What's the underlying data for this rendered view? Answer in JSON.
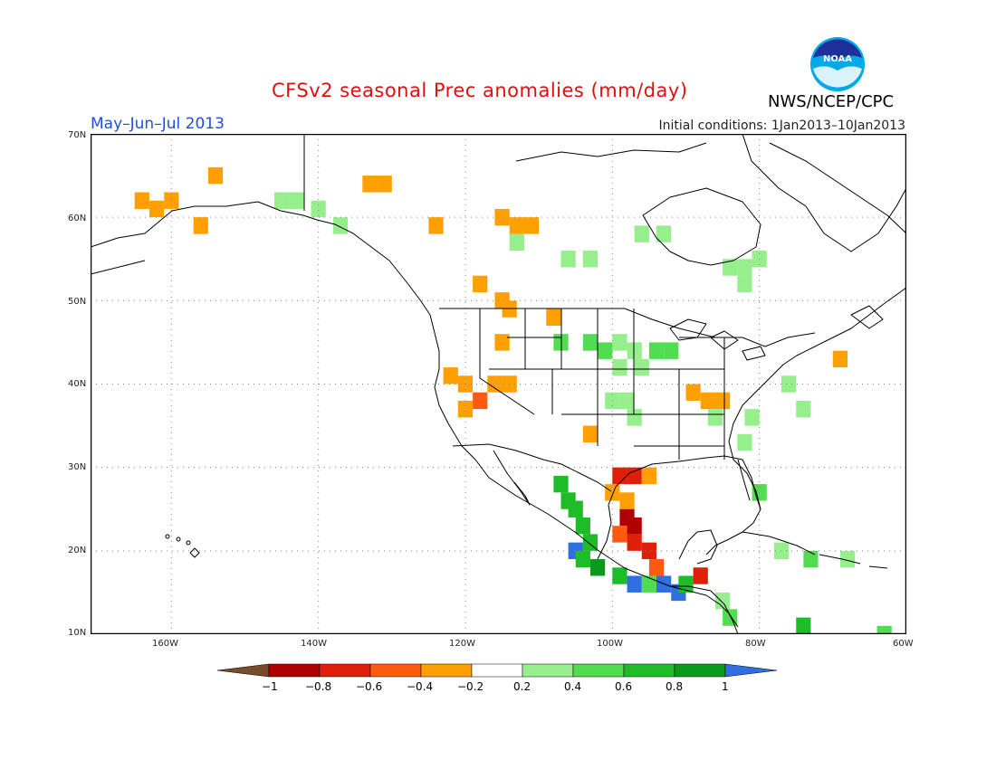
{
  "header": {
    "title": "CFSv2 seasonal Prec anomalies (mm/day)",
    "period": "May–Jun–Jul 2013",
    "initial_conditions": "Initial conditions: 1Jan2013–10Jan2013",
    "agency": "NWS/NCEP/CPC",
    "logo_text": "NOAA"
  },
  "axes": {
    "lat_labels": [
      "70N",
      "60N",
      "50N",
      "40N",
      "30N",
      "20N",
      "10N"
    ],
    "lon_labels": [
      "160W",
      "140W",
      "120W",
      "100W",
      "80W",
      "60W"
    ],
    "lat_range": [
      10,
      70
    ],
    "lon_range": [
      -171,
      -60
    ]
  },
  "colorbar": {
    "ticks": [
      "−1",
      "−0.8",
      "−0.6",
      "−0.4",
      "−0.2",
      "0.2",
      "0.4",
      "0.6",
      "0.8",
      "1"
    ],
    "colors": {
      "lt_m1": "#7a4a2a",
      "m1_m08": "#b00000",
      "m08_m06": "#e01f0a",
      "m06_m04": "#ff5a10",
      "m04_m02": "#ffa000",
      "m02_02": "#ffffff",
      "p02_04": "#96ee8c",
      "p04_06": "#52dc52",
      "p06_08": "#1ebc28",
      "p08_1": "#0c9a1c",
      "gt_1": "#2f6fe0"
    }
  },
  "anomaly_cells": [
    {
      "lon": -164,
      "lat": 62,
      "cls": "m04_m02"
    },
    {
      "lon": -162,
      "lat": 61,
      "cls": "m04_m02"
    },
    {
      "lon": -160,
      "lat": 62,
      "cls": "m04_m02"
    },
    {
      "lon": -156,
      "lat": 59,
      "cls": "m04_m02"
    },
    {
      "lon": -154,
      "lat": 65,
      "cls": "m04_m02"
    },
    {
      "lon": -133,
      "lat": 64,
      "cls": "m04_m02"
    },
    {
      "lon": -131,
      "lat": 64,
      "cls": "m04_m02"
    },
    {
      "lon": -145,
      "lat": 62,
      "cls": "p02_04"
    },
    {
      "lon": -143,
      "lat": 62,
      "cls": "p02_04"
    },
    {
      "lon": -140,
      "lat": 61,
      "cls": "p02_04"
    },
    {
      "lon": -137,
      "lat": 59,
      "cls": "p02_04"
    },
    {
      "lon": -124,
      "lat": 59,
      "cls": "m04_m02"
    },
    {
      "lon": -115,
      "lat": 60,
      "cls": "m04_m02"
    },
    {
      "lon": -113,
      "lat": 59,
      "cls": "m04_m02"
    },
    {
      "lon": -111,
      "lat": 59,
      "cls": "m04_m02"
    },
    {
      "lon": -113,
      "lat": 57,
      "cls": "p02_04"
    },
    {
      "lon": -106,
      "lat": 55,
      "cls": "p02_04"
    },
    {
      "lon": -103,
      "lat": 55,
      "cls": "p02_04"
    },
    {
      "lon": -96,
      "lat": 58,
      "cls": "p02_04"
    },
    {
      "lon": -93,
      "lat": 58,
      "cls": "p02_04"
    },
    {
      "lon": -84,
      "lat": 54,
      "cls": "p02_04"
    },
    {
      "lon": -82,
      "lat": 54,
      "cls": "p02_04"
    },
    {
      "lon": -80,
      "lat": 55,
      "cls": "p02_04"
    },
    {
      "lon": -82,
      "lat": 52,
      "cls": "p02_04"
    },
    {
      "lon": -118,
      "lat": 52,
      "cls": "m04_m02"
    },
    {
      "lon": -115,
      "lat": 50,
      "cls": "m04_m02"
    },
    {
      "lon": -114,
      "lat": 49,
      "cls": "m04_m02"
    },
    {
      "lon": -108,
      "lat": 48,
      "cls": "m04_m02"
    },
    {
      "lon": -115,
      "lat": 45,
      "cls": "m04_m02"
    },
    {
      "lon": -107,
      "lat": 45,
      "cls": "p04_06"
    },
    {
      "lon": -103,
      "lat": 45,
      "cls": "p04_06"
    },
    {
      "lon": -101,
      "lat": 44,
      "cls": "p04_06"
    },
    {
      "lon": -99,
      "lat": 45,
      "cls": "p02_04"
    },
    {
      "lon": -97,
      "lat": 44,
      "cls": "p02_04"
    },
    {
      "lon": -94,
      "lat": 44,
      "cls": "p04_06"
    },
    {
      "lon": -92,
      "lat": 44,
      "cls": "p04_06"
    },
    {
      "lon": -99,
      "lat": 42,
      "cls": "p02_04"
    },
    {
      "lon": -96,
      "lat": 42,
      "cls": "p02_04"
    },
    {
      "lon": -122,
      "lat": 41,
      "cls": "m04_m02"
    },
    {
      "lon": -120,
      "lat": 40,
      "cls": "m04_m02"
    },
    {
      "lon": -118,
      "lat": 38,
      "cls": "m06_m04"
    },
    {
      "lon": -116,
      "lat": 40,
      "cls": "m04_m02"
    },
    {
      "lon": -114,
      "lat": 40,
      "cls": "m04_m02"
    },
    {
      "lon": -120,
      "lat": 37,
      "cls": "m04_m02"
    },
    {
      "lon": -100,
      "lat": 38,
      "cls": "p02_04"
    },
    {
      "lon": -98,
      "lat": 38,
      "cls": "p02_04"
    },
    {
      "lon": -97,
      "lat": 36,
      "cls": "p02_04"
    },
    {
      "lon": -103,
      "lat": 34,
      "cls": "m04_m02"
    },
    {
      "lon": -89,
      "lat": 39,
      "cls": "m04_m02"
    },
    {
      "lon": -87,
      "lat": 38,
      "cls": "m04_m02"
    },
    {
      "lon": -85,
      "lat": 38,
      "cls": "m04_m02"
    },
    {
      "lon": -86,
      "lat": 36,
      "cls": "p02_04"
    },
    {
      "lon": -81,
      "lat": 36,
      "cls": "p02_04"
    },
    {
      "lon": -76,
      "lat": 40,
      "cls": "p02_04"
    },
    {
      "lon": -74,
      "lat": 37,
      "cls": "p02_04"
    },
    {
      "lon": -82,
      "lat": 33,
      "cls": "p02_04"
    },
    {
      "lon": -80,
      "lat": 27,
      "cls": "p04_06"
    },
    {
      "lon": -99,
      "lat": 29,
      "cls": "m08_m06"
    },
    {
      "lon": -97,
      "lat": 29,
      "cls": "m08_m06"
    },
    {
      "lon": -95,
      "lat": 29,
      "cls": "m04_m02"
    },
    {
      "lon": -100,
      "lat": 27,
      "cls": "m04_m02"
    },
    {
      "lon": -98,
      "lat": 26,
      "cls": "m04_m02"
    },
    {
      "lon": -98,
      "lat": 24,
      "cls": "m1_m08"
    },
    {
      "lon": -97,
      "lat": 23,
      "cls": "m1_m08"
    },
    {
      "lon": -99,
      "lat": 22,
      "cls": "m06_m04"
    },
    {
      "lon": -97,
      "lat": 21,
      "cls": "m08_m06"
    },
    {
      "lon": -95,
      "lat": 20,
      "cls": "m08_m06"
    },
    {
      "lon": -94,
      "lat": 18,
      "cls": "m06_m04"
    },
    {
      "lon": -107,
      "lat": 28,
      "cls": "p06_08"
    },
    {
      "lon": -106,
      "lat": 26,
      "cls": "p06_08"
    },
    {
      "lon": -105,
      "lat": 25,
      "cls": "p06_08"
    },
    {
      "lon": -104,
      "lat": 23,
      "cls": "p06_08"
    },
    {
      "lon": -103,
      "lat": 21,
      "cls": "p06_08"
    },
    {
      "lon": -105,
      "lat": 20,
      "cls": "gt_1"
    },
    {
      "lon": -104,
      "lat": 19,
      "cls": "p06_08"
    },
    {
      "lon": -102,
      "lat": 18,
      "cls": "p08_1"
    },
    {
      "lon": -99,
      "lat": 17,
      "cls": "p06_08"
    },
    {
      "lon": -97,
      "lat": 16,
      "cls": "gt_1"
    },
    {
      "lon": -95,
      "lat": 16,
      "cls": "p04_06"
    },
    {
      "lon": -93,
      "lat": 16,
      "cls": "gt_1"
    },
    {
      "lon": -91,
      "lat": 15,
      "cls": "gt_1"
    },
    {
      "lon": -90,
      "lat": 16,
      "cls": "p06_08"
    },
    {
      "lon": -88,
      "lat": 17,
      "cls": "m08_m06"
    },
    {
      "lon": -85,
      "lat": 14,
      "cls": "p02_04"
    },
    {
      "lon": -84,
      "lat": 12,
      "cls": "p04_06"
    },
    {
      "lon": -77,
      "lat": 20,
      "cls": "p02_04"
    },
    {
      "lon": -73,
      "lat": 19,
      "cls": "p04_06"
    },
    {
      "lon": -68,
      "lat": 19,
      "cls": "p02_04"
    },
    {
      "lon": -74,
      "lat": 11,
      "cls": "p06_08"
    },
    {
      "lon": -63,
      "lat": 10,
      "cls": "p04_06"
    },
    {
      "lon": -69,
      "lat": 43,
      "cls": "m04_m02"
    }
  ]
}
